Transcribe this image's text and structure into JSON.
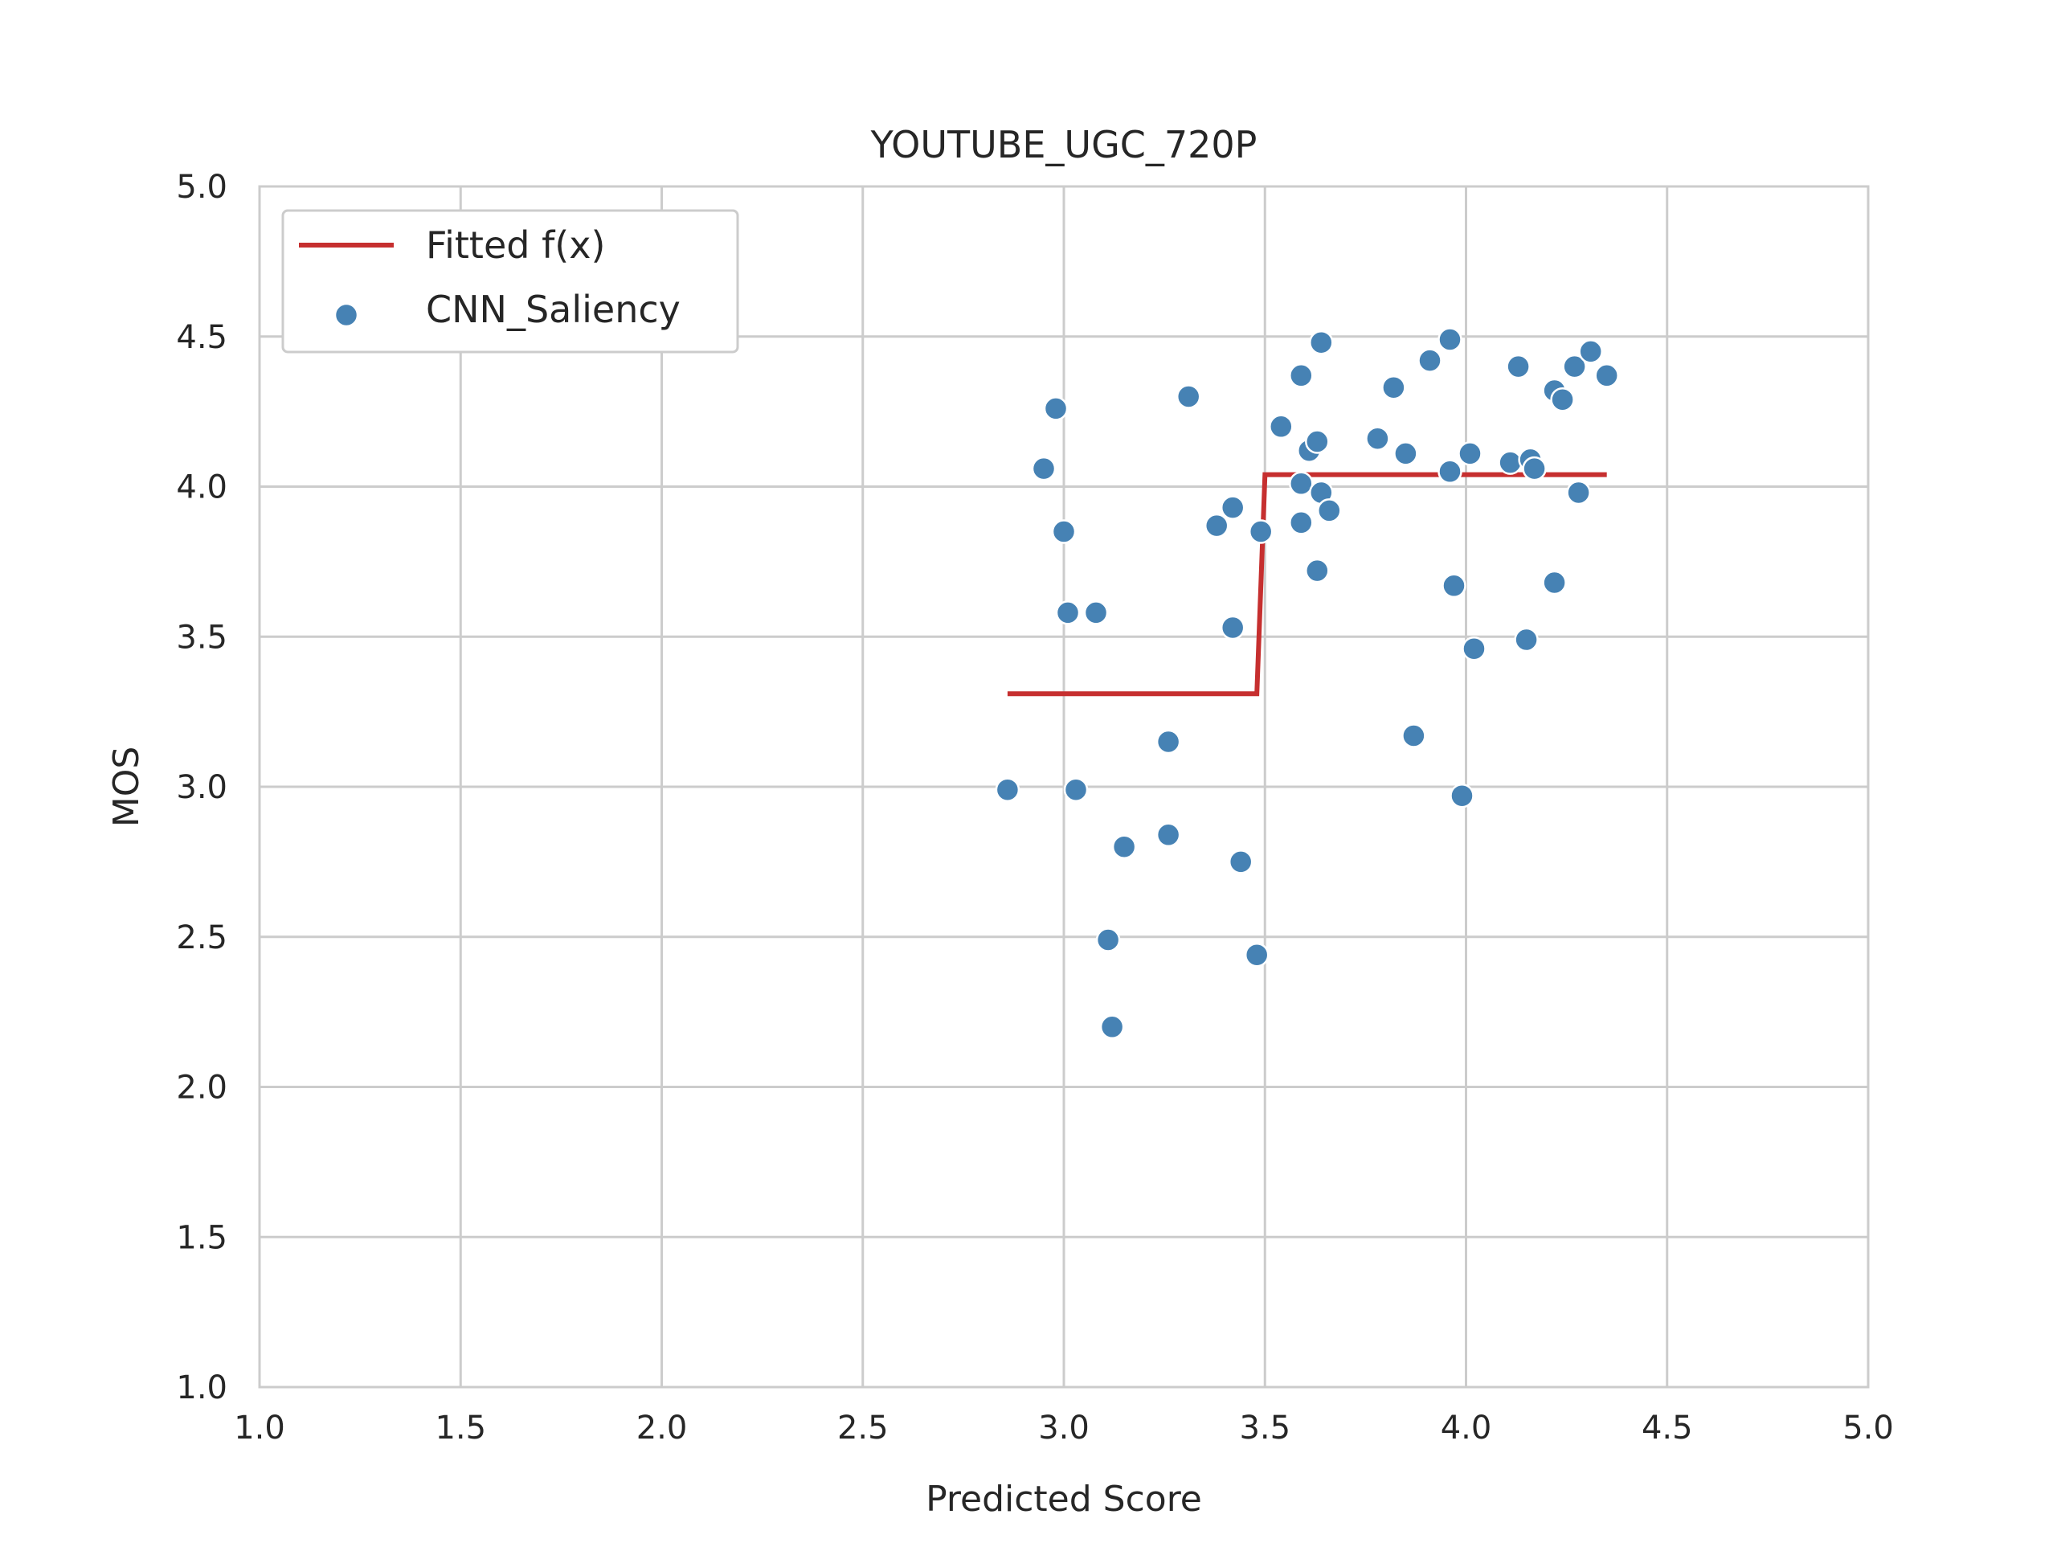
{
  "chart_data": {
    "type": "scatter",
    "title": "YOUTUBE_UGC_720P",
    "xlabel": "Predicted Score",
    "ylabel": "MOS",
    "xlim": [
      1.0,
      5.0
    ],
    "ylim": [
      1.0,
      5.0
    ],
    "x_ticks": [
      "1.0",
      "1.5",
      "2.0",
      "2.5",
      "3.0",
      "3.5",
      "4.0",
      "4.5",
      "5.0"
    ],
    "y_ticks": [
      "1.0",
      "1.5",
      "2.0",
      "2.5",
      "3.0",
      "3.5",
      "4.0",
      "4.5",
      "5.0"
    ],
    "grid": true,
    "legend_position": "top-left",
    "colors": {
      "points": "#4682b4",
      "fit": "#c62f2f",
      "grid": "#cccccc"
    },
    "legend": [
      {
        "label": "Fitted f(x)",
        "kind": "line"
      },
      {
        "label": "CNN_Saliency",
        "kind": "marker"
      }
    ],
    "fit_line": {
      "name": "Fitted f(x)",
      "x": [
        2.86,
        3.48,
        3.5,
        4.35
      ],
      "y": [
        3.31,
        3.31,
        4.04,
        4.04
      ]
    },
    "series": [
      {
        "name": "CNN_Saliency",
        "points": [
          [
            2.86,
            2.99
          ],
          [
            2.95,
            4.06
          ],
          [
            2.98,
            4.26
          ],
          [
            3.0,
            3.85
          ],
          [
            3.01,
            3.58
          ],
          [
            3.03,
            2.99
          ],
          [
            3.08,
            3.58
          ],
          [
            3.11,
            2.49
          ],
          [
            3.12,
            2.2
          ],
          [
            3.15,
            2.8
          ],
          [
            3.26,
            3.15
          ],
          [
            3.26,
            2.84
          ],
          [
            3.31,
            4.3
          ],
          [
            3.38,
            3.87
          ],
          [
            3.42,
            3.93
          ],
          [
            3.42,
            3.53
          ],
          [
            3.44,
            2.75
          ],
          [
            3.48,
            2.44
          ],
          [
            3.49,
            3.85
          ],
          [
            3.54,
            4.2
          ],
          [
            3.59,
            4.37
          ],
          [
            3.59,
            4.01
          ],
          [
            3.59,
            3.88
          ],
          [
            3.61,
            4.12
          ],
          [
            3.63,
            4.15
          ],
          [
            3.63,
            3.72
          ],
          [
            3.64,
            3.98
          ],
          [
            3.64,
            4.48
          ],
          [
            3.66,
            3.92
          ],
          [
            3.78,
            4.16
          ],
          [
            3.82,
            4.33
          ],
          [
            3.85,
            4.11
          ],
          [
            3.87,
            3.17
          ],
          [
            3.91,
            4.42
          ],
          [
            3.96,
            4.49
          ],
          [
            3.96,
            4.05
          ],
          [
            3.97,
            3.67
          ],
          [
            3.99,
            2.97
          ],
          [
            4.01,
            4.11
          ],
          [
            4.02,
            3.46
          ],
          [
            4.11,
            4.08
          ],
          [
            4.13,
            4.4
          ],
          [
            4.15,
            3.49
          ],
          [
            4.16,
            4.09
          ],
          [
            4.17,
            4.06
          ],
          [
            4.22,
            4.32
          ],
          [
            4.22,
            3.68
          ],
          [
            4.24,
            4.29
          ],
          [
            4.27,
            4.4
          ],
          [
            4.28,
            3.98
          ],
          [
            4.31,
            4.45
          ],
          [
            4.35,
            4.37
          ]
        ]
      }
    ]
  }
}
